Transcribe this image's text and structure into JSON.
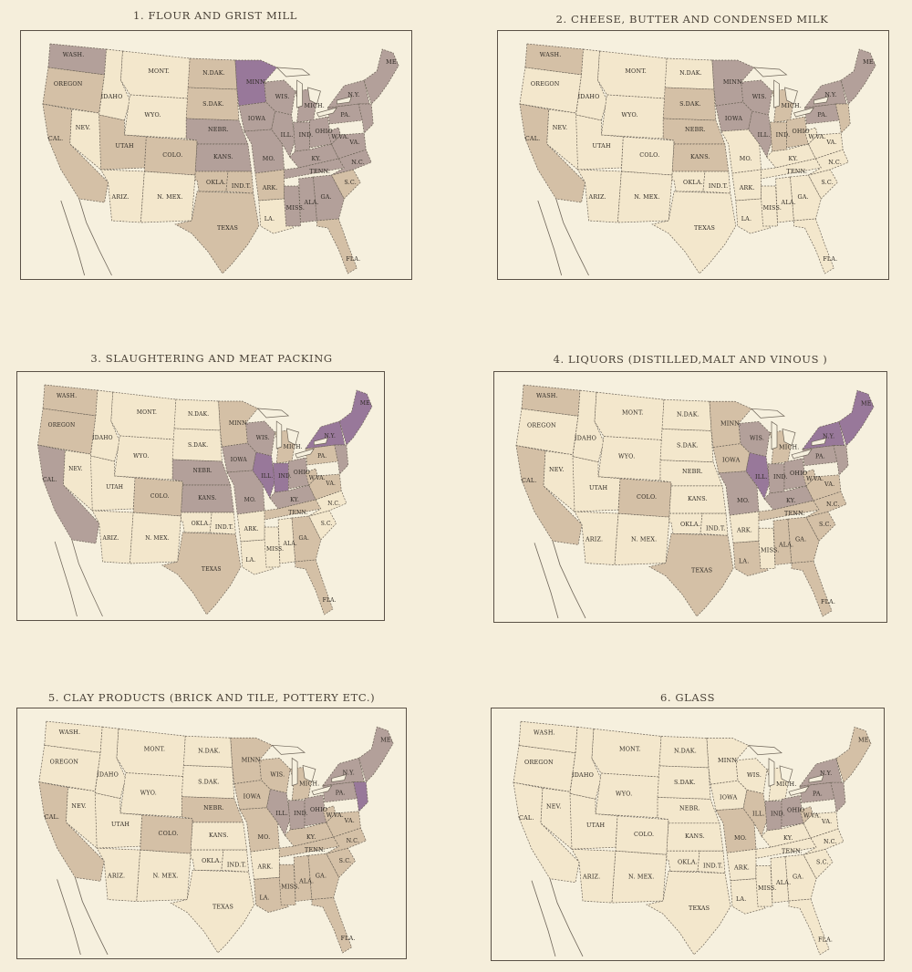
{
  "colors": {
    "none": "#f3e7cc",
    "low": "#d4c0a6",
    "mid": "#b3a09a",
    "high": "#98789a"
  },
  "state_labels": {
    "WA": "WASH.",
    "OR": "OREGON",
    "CA": "CAL.",
    "NV": "NEV.",
    "ID": "IDAHO",
    "MT": "MONT.",
    "WY": "WYO.",
    "UT": "UTAH",
    "AZ": "ARIZ.",
    "CO": "COLO.",
    "NM": "N. MEX.",
    "ND": "N.DAK.",
    "SD": "S.DAK.",
    "NE": "NEBR.",
    "KS": "KANS.",
    "OK": "OKLA.",
    "IT": "IND.T.",
    "TX": "TEXAS",
    "MN": "MINN.",
    "IA": "IOWA",
    "MO": "MO.",
    "AR": "ARK.",
    "LA": "LA.",
    "WI": "WIS.",
    "IL": "ILL.",
    "MS": "MISS.",
    "MI": "MICH.",
    "IN": "IND.",
    "KY": "KY.",
    "TN": "TENN.",
    "AL": "ALA.",
    "OH": "OHIO",
    "GA": "GA.",
    "FL": "FLA.",
    "SC": "S.C.",
    "NC": "N.C.",
    "VA": "VA.",
    "WV": "W.VA.",
    "PA": "PA.",
    "NY": "N.Y.",
    "ME": "ME."
  },
  "maps": [
    {
      "title": "1. FLOUR AND GRIST MILL",
      "levels": {
        "WA": "mid",
        "OR": "low",
        "CA": "low",
        "NV": "none",
        "ID": "none",
        "MT": "none",
        "WY": "none",
        "UT": "low",
        "AZ": "none",
        "CO": "low",
        "NM": "none",
        "ND": "low",
        "SD": "low",
        "NE": "mid",
        "KS": "mid",
        "OK": "low",
        "IT": "low",
        "TX": "low",
        "MN": "high",
        "IA": "mid",
        "MO": "mid",
        "AR": "low",
        "LA": "none",
        "WI": "mid",
        "IL": "mid",
        "MS": "mid",
        "MI": "mid",
        "IN": "mid",
        "KY": "mid",
        "TN": "mid",
        "AL": "mid",
        "OH": "mid",
        "GA": "mid",
        "FL": "low",
        "SC": "low",
        "NC": "mid",
        "VA": "mid",
        "WV": "mid",
        "PA": "mid",
        "NY": "mid",
        "NE_REG": "mid",
        "MDDE": "mid"
      }
    },
    {
      "title": "2. CHEESE, BUTTER AND CONDENSED MILK",
      "levels": {
        "WA": "low",
        "OR": "none",
        "CA": "low",
        "NV": "none",
        "ID": "none",
        "MT": "none",
        "WY": "none",
        "UT": "none",
        "AZ": "none",
        "CO": "none",
        "NM": "none",
        "ND": "none",
        "SD": "low",
        "NE": "low",
        "KS": "low",
        "OK": "none",
        "IT": "none",
        "TX": "none",
        "MN": "mid",
        "IA": "mid",
        "MO": "none",
        "AR": "none",
        "LA": "none",
        "WI": "mid",
        "IL": "mid",
        "MS": "none",
        "MI": "low",
        "IN": "low",
        "KY": "none",
        "TN": "none",
        "AL": "none",
        "OH": "low",
        "GA": "none",
        "FL": "none",
        "SC": "none",
        "NC": "none",
        "VA": "none",
        "WV": "none",
        "PA": "mid",
        "NY": "mid",
        "NE_REG": "mid",
        "MDDE": "low"
      }
    },
    {
      "title": "3. SLAUGHTERING AND MEAT PACKING",
      "levels": {
        "WA": "low",
        "OR": "low",
        "CA": "mid",
        "NV": "none",
        "ID": "none",
        "MT": "none",
        "WY": "none",
        "UT": "none",
        "AZ": "none",
        "CO": "low",
        "NM": "none",
        "ND": "none",
        "SD": "none",
        "NE": "mid",
        "KS": "mid",
        "OK": "none",
        "IT": "none",
        "TX": "low",
        "MN": "low",
        "IA": "mid",
        "MO": "mid",
        "AR": "none",
        "LA": "none",
        "WI": "mid",
        "IL": "high",
        "MS": "none",
        "MI": "low",
        "IN": "high",
        "KY": "mid",
        "TN": "low",
        "AL": "none",
        "OH": "mid",
        "GA": "low",
        "FL": "low",
        "SC": "none",
        "NC": "none",
        "VA": "low",
        "WV": "low",
        "PA": "low",
        "NY": "high",
        "NE_REG": "high",
        "MDDE": "mid"
      }
    },
    {
      "title": "4. LIQUORS (DISTILLED,MALT AND VINOUS )",
      "levels": {
        "WA": "low",
        "OR": "none",
        "CA": "low",
        "NV": "none",
        "ID": "none",
        "MT": "none",
        "WY": "none",
        "UT": "none",
        "AZ": "none",
        "CO": "low",
        "NM": "none",
        "ND": "none",
        "SD": "none",
        "NE": "none",
        "KS": "none",
        "OK": "none",
        "IT": "none",
        "TX": "low",
        "MN": "low",
        "IA": "low",
        "MO": "mid",
        "AR": "none",
        "LA": "low",
        "WI": "mid",
        "IL": "high",
        "MS": "none",
        "MI": "low",
        "IN": "mid",
        "KY": "mid",
        "TN": "low",
        "AL": "low",
        "OH": "mid",
        "GA": "low",
        "FL": "low",
        "SC": "low",
        "NC": "low",
        "VA": "low",
        "WV": "low",
        "PA": "mid",
        "NY": "high",
        "NE_REG": "high",
        "MDDE": "mid"
      }
    },
    {
      "title": "5. CLAY PRODUCTS (BRICK AND TILE, POTTERY ETC.)",
      "levels": {
        "WA": "none",
        "OR": "none",
        "CA": "low",
        "NV": "none",
        "ID": "none",
        "MT": "none",
        "WY": "none",
        "UT": "none",
        "AZ": "none",
        "CO": "low",
        "NM": "none",
        "ND": "none",
        "SD": "none",
        "NE": "low",
        "KS": "none",
        "OK": "none",
        "IT": "none",
        "TX": "none",
        "MN": "low",
        "IA": "low",
        "MO": "low",
        "AR": "none",
        "LA": "low",
        "WI": "low",
        "IL": "mid",
        "MS": "low",
        "MI": "low",
        "IN": "mid",
        "KY": "low",
        "TN": "low",
        "AL": "low",
        "OH": "mid",
        "GA": "low",
        "FL": "low",
        "SC": "low",
        "NC": "low",
        "VA": "low",
        "WV": "low",
        "PA": "mid",
        "NY": "mid",
        "NE_REG": "mid",
        "MDDE": "high"
      }
    },
    {
      "title": "6. GLASS",
      "levels": {
        "WA": "none",
        "OR": "none",
        "CA": "none",
        "NV": "none",
        "ID": "none",
        "MT": "none",
        "WY": "none",
        "UT": "none",
        "AZ": "none",
        "CO": "none",
        "NM": "none",
        "ND": "none",
        "SD": "none",
        "NE": "none",
        "KS": "none",
        "OK": "none",
        "IT": "none",
        "TX": "none",
        "MN": "none",
        "IA": "none",
        "MO": "low",
        "AR": "none",
        "LA": "none",
        "WI": "none",
        "IL": "low",
        "MS": "none",
        "MI": "none",
        "IN": "mid",
        "KY": "none",
        "TN": "none",
        "AL": "none",
        "OH": "mid",
        "GA": "none",
        "FL": "none",
        "SC": "none",
        "NC": "none",
        "VA": "none",
        "WV": "low",
        "PA": "mid",
        "NY": "mid",
        "NE_REG": "low",
        "MDDE": "mid"
      }
    }
  ]
}
